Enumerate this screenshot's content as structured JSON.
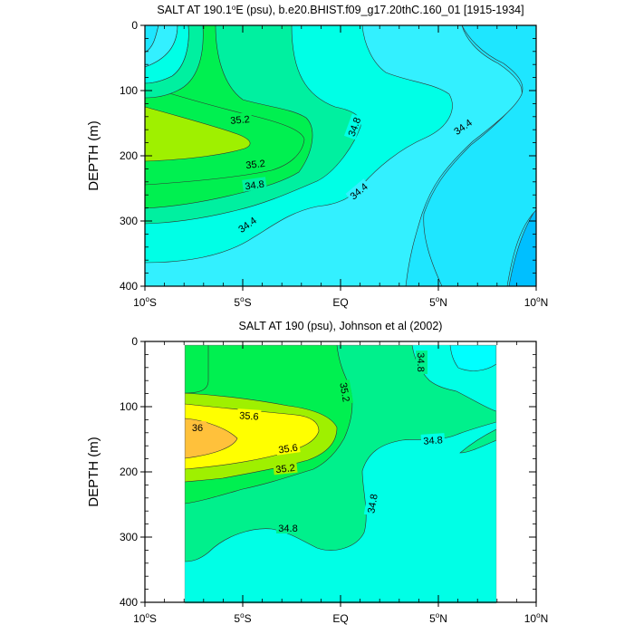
{
  "chart_data": [
    {
      "type": "contour",
      "title": "SALT AT 190.1°E (psu), b.e20.BHIST.f09_g17.20thC.160_01 [1915-1934]",
      "title_pre": "SALT AT 190.1",
      "title_sup": "o",
      "title_post": "E (psu), b.e20.BHIST.f09_g17.20thC.160_01 [1915-1934]",
      "ylabel": "DEPTH (m)",
      "xlim": [
        -10,
        10
      ],
      "ylim": [
        0,
        400
      ],
      "y_inverted": true,
      "y_ticks": [
        "0",
        "100",
        "200",
        "300",
        "400"
      ],
      "x_ticks": [
        {
          "pre": "10",
          "sup": "o",
          "post": "S"
        },
        {
          "pre": "5",
          "sup": "o",
          "post": "S"
        },
        {
          "pre": "EQ",
          "sup": "",
          "post": ""
        },
        {
          "pre": "5",
          "sup": "o",
          "post": "N"
        },
        {
          "pre": "10",
          "sup": "o",
          "post": "N"
        }
      ],
      "contour_labels": [
        "35.2",
        "35.2",
        "34.8",
        "34.4",
        "34.8",
        "34.4",
        "34.8",
        "34.4"
      ],
      "colors": {
        "lvl_0": "#00bfff",
        "lvl_1": "#1ee6ff",
        "lvl_2": "#33f0ff",
        "lvl_3": "#00ffe6",
        "lvl_4": "#00f0a0",
        "lvl_5": "#00f050",
        "lvl_6": "#9ff000",
        "line": "#333333"
      }
    },
    {
      "type": "contour",
      "title": "SALT AT 190 (psu), Johnson et al (2002)",
      "ylabel": "DEPTH (m)",
      "xlim": [
        -10,
        10
      ],
      "ylim": [
        0,
        400
      ],
      "y_inverted": true,
      "y_ticks": [
        "0",
        "100",
        "200",
        "300",
        "400"
      ],
      "x_ticks": [
        {
          "pre": "10",
          "sup": "o",
          "post": "S"
        },
        {
          "pre": "5",
          "sup": "o",
          "post": "S"
        },
        {
          "pre": "EQ",
          "sup": "",
          "post": ""
        },
        {
          "pre": "5",
          "sup": "o",
          "post": "N"
        },
        {
          "pre": "10",
          "sup": "o",
          "post": "N"
        }
      ],
      "contour_labels": [
        "34.8",
        "35.2",
        "35.6",
        "36",
        "35.6",
        "35.2",
        "34.8",
        "34.8",
        "34.8"
      ],
      "colors": {
        "lvl_a": "#00ffe6",
        "lvl_b": "#00f08c",
        "lvl_c": "#00f050",
        "lvl_d": "#9ff000",
        "lvl_e": "#ffff00",
        "lvl_f": "#ffc13b",
        "cyan": "#00ffff",
        "line": "#333333"
      }
    }
  ]
}
